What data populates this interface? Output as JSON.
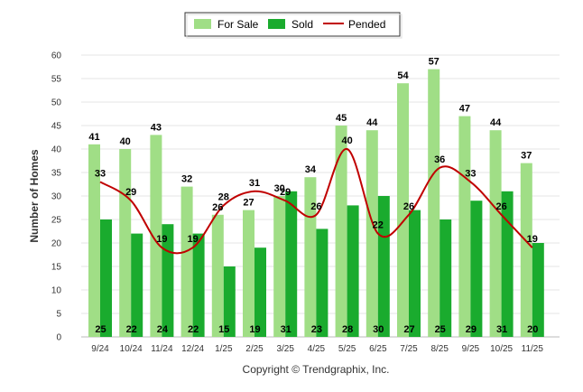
{
  "chart_data": {
    "type": "bar",
    "title": "",
    "xlabel": "",
    "ylabel": "Number of Homes",
    "ylim": [
      0,
      60
    ],
    "yticks": [
      0,
      5,
      10,
      15,
      20,
      25,
      30,
      35,
      40,
      45,
      50,
      55,
      60
    ],
    "grid": true,
    "legend_position": "top-center",
    "categories": [
      "9/24",
      "10/24",
      "11/24",
      "12/24",
      "1/25",
      "2/25",
      "3/25",
      "4/25",
      "5/25",
      "6/25",
      "7/25",
      "8/25",
      "9/25",
      "10/25",
      "11/25"
    ],
    "series": [
      {
        "name": "For Sale",
        "kind": "bar",
        "color": "#a0de86",
        "values": [
          41,
          40,
          43,
          32,
          26,
          27,
          30,
          34,
          45,
          44,
          54,
          57,
          47,
          44,
          37
        ]
      },
      {
        "name": "Sold",
        "kind": "bar",
        "color": "#1aab2e",
        "values": [
          25,
          22,
          24,
          22,
          15,
          19,
          31,
          23,
          28,
          30,
          27,
          25,
          29,
          31,
          20
        ]
      },
      {
        "name": "Pended",
        "kind": "line",
        "color": "#c00000",
        "values": [
          33,
          29,
          19,
          19,
          28,
          31,
          29,
          26,
          40,
          22,
          26,
          36,
          33,
          26,
          19
        ]
      }
    ]
  },
  "footer": {
    "copyright": "Copyright © Trendgraphix, Inc."
  }
}
